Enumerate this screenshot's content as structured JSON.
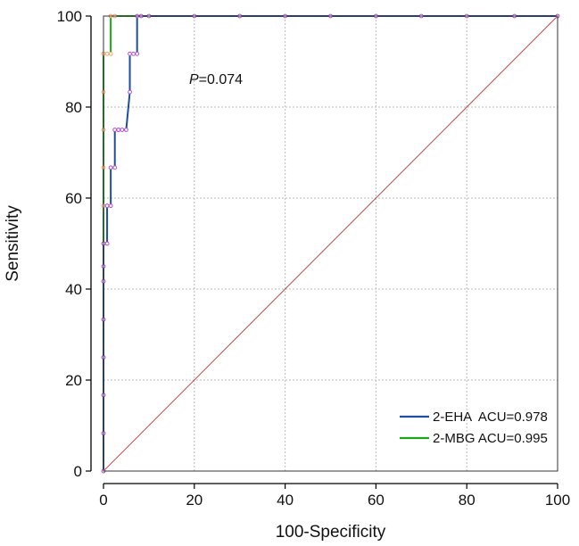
{
  "chart_data": {
    "type": "line",
    "title": "",
    "xlabel": "100-Specificity",
    "ylabel": "Sensitivity",
    "xlim": [
      0,
      100
    ],
    "ylim": [
      0,
      100
    ],
    "xticks": [
      0,
      20,
      40,
      60,
      80,
      100
    ],
    "yticks": [
      0,
      20,
      40,
      60,
      80,
      100
    ],
    "grid": true,
    "legend_position": "bottom-right",
    "annotation": {
      "italic": "P",
      "rest": "=0.074"
    },
    "series": [
      {
        "name": "2-EHA  ACU=0.978",
        "color": "#1f4e9c",
        "marker_color": "#b04fd0",
        "x": [
          0,
          0,
          0,
          0,
          0,
          0,
          0,
          0,
          0.8,
          0.8,
          0.8,
          1.6,
          1.6,
          2.5,
          2.5,
          3.3,
          3.3,
          4.1,
          5.0,
          5.8,
          5.8,
          6.6,
          7.4,
          7.4,
          8.3,
          10,
          20,
          30,
          40,
          50,
          60,
          70,
          80,
          90.5,
          100
        ],
        "y": [
          0,
          8.3,
          16.7,
          25,
          33.3,
          41.7,
          45,
          50,
          50,
          58.3,
          58.3,
          58.3,
          66.7,
          66.7,
          75,
          75,
          75,
          75,
          75,
          83.3,
          91.7,
          91.7,
          91.7,
          100,
          100,
          100,
          100,
          100,
          100,
          100,
          100,
          100,
          100,
          100,
          100
        ]
      },
      {
        "name": "2-MBG ACU=0.995",
        "color": "#1aa51a",
        "marker_color": "#f0a060",
        "x": [
          0,
          0,
          0,
          0,
          0,
          0,
          0,
          0,
          0,
          0,
          0,
          0,
          0,
          0.8,
          1.6,
          1.6,
          2.5,
          30,
          60,
          100
        ],
        "y": [
          0,
          8.3,
          16.7,
          25,
          33.3,
          41.7,
          50,
          58.3,
          66.7,
          75,
          83.3,
          91.7,
          91.7,
          91.7,
          91.7,
          100,
          100,
          100,
          100,
          100
        ]
      }
    ],
    "reference_line": {
      "x": [
        0,
        100
      ],
      "y": [
        0,
        100
      ],
      "color": "#b84a4a"
    }
  }
}
